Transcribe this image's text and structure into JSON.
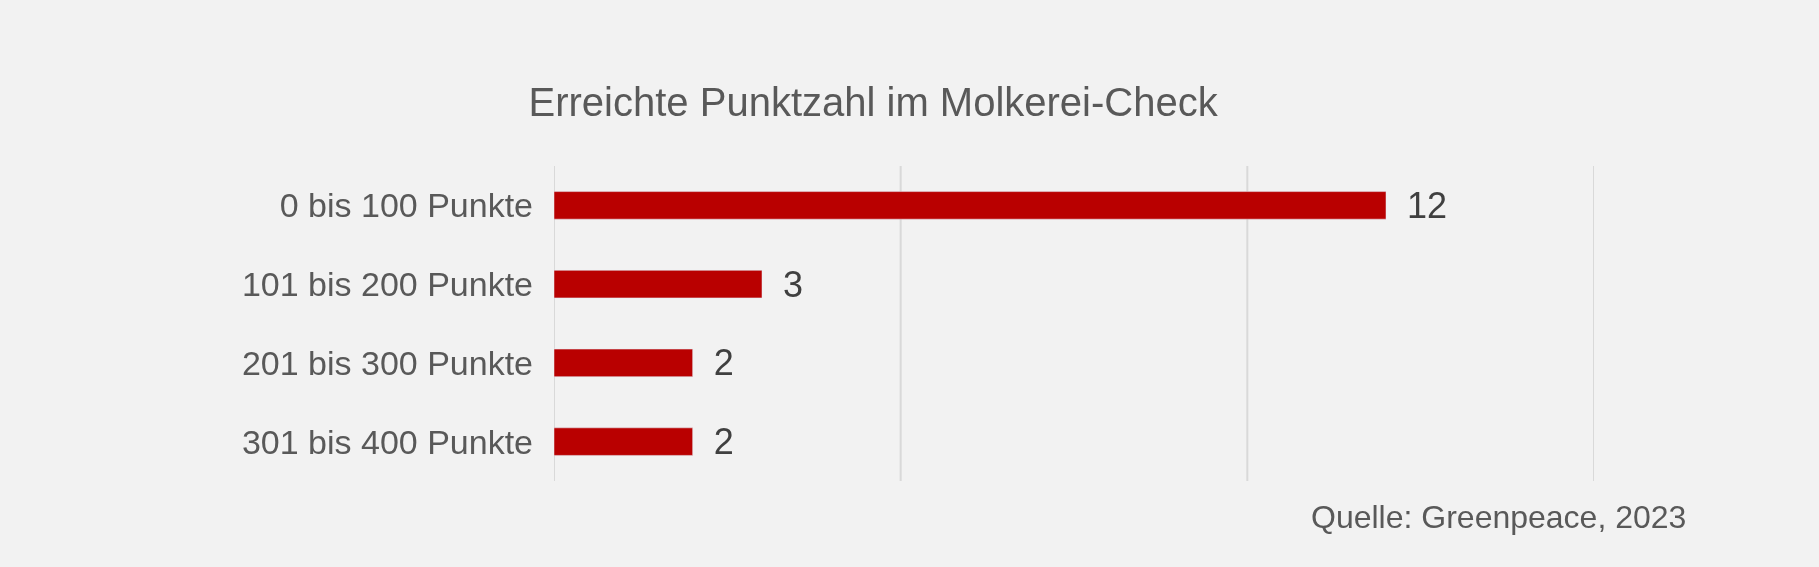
{
  "chart_data": {
    "type": "bar",
    "orientation": "horizontal",
    "title": "Erreichte Punktzahl im Molkerei-Check",
    "categories": [
      "0 bis 100 Punkte",
      "101 bis 200 Punkte",
      "201 bis 300 Punkte",
      "301 bis 400 Punkte"
    ],
    "values": [
      12,
      3,
      2,
      2
    ],
    "color": "#b90000",
    "xlim": [
      0,
      15
    ],
    "xticks": [
      {
        "value": 0,
        "label": null
      },
      {
        "value": 5,
        "label": null
      },
      {
        "value": 10,
        "label": null
      },
      {
        "value": 15,
        "label": null
      }
    ],
    "grid": "x",
    "tick_labels": "y",
    "data_labels": true,
    "annotations": [
      "Quelle: Greenpeace, 2023"
    ]
  }
}
